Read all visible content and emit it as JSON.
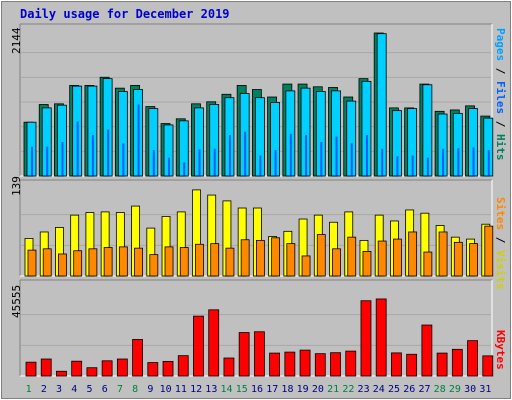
{
  "title": "Daily usage for December 2019",
  "colors": {
    "hits": "#00d0ff",
    "hits_dark": "#008060",
    "files": "#00a0a0",
    "pages": "#0000ff",
    "visits": "#ffff00",
    "sites": "#ff8800",
    "kbytes": "#ff0000",
    "title": "#0000cc",
    "weekend_label": "#008040",
    "weekday_label": "#000080"
  },
  "chart_data": [
    {
      "type": "bar",
      "max_label": "2144",
      "right_labels": [
        {
          "text": "Pages",
          "color": "#00a0ff"
        },
        {
          "text": " / ",
          "color": "#000000"
        },
        {
          "text": "Files",
          "color": "#0060ff"
        },
        {
          "text": " / ",
          "color": "#000000"
        },
        {
          "text": "Hits",
          "color": "#008060"
        }
      ],
      "ylim": [
        0,
        2144
      ],
      "series": [
        {
          "name": "Hits",
          "values": [
            790,
            1050,
            1060,
            1330,
            1330,
            1450,
            1290,
            1330,
            1020,
            770,
            840,
            1060,
            1090,
            1200,
            1330,
            1270,
            1160,
            1350,
            1350,
            1310,
            1300,
            1160,
            1430,
            2100,
            1000,
            1000,
            1350,
            950,
            970,
            1030,
            880
          ]
        },
        {
          "name": "Files",
          "values": [
            790,
            1000,
            1040,
            1320,
            1320,
            1430,
            1240,
            1270,
            990,
            750,
            810,
            1000,
            1050,
            1150,
            1210,
            1150,
            1080,
            1250,
            1290,
            1240,
            1250,
            1100,
            1390,
            2090,
            960,
            990,
            1340,
            910,
            920,
            990,
            850
          ]
        },
        {
          "name": "Pages",
          "values": [
            430,
            430,
            500,
            800,
            600,
            680,
            480,
            1050,
            380,
            270,
            200,
            390,
            400,
            600,
            650,
            300,
            380,
            620,
            600,
            500,
            580,
            480,
            600,
            400,
            290,
            300,
            270,
            400,
            410,
            420,
            380
          ]
        }
      ]
    },
    {
      "type": "bar",
      "max_label": "139",
      "right_labels": [
        {
          "text": "Sites",
          "color": "#ff8800"
        },
        {
          "text": " / ",
          "color": "#000000"
        },
        {
          "text": "Visits",
          "color": "#d0d000"
        }
      ],
      "ylim": [
        0,
        139
      ],
      "series": [
        {
          "name": "Visits",
          "values": [
            58,
            68,
            75,
            94,
            98,
            99,
            98,
            108,
            74,
            92,
            99,
            133,
            125,
            116,
            105,
            105,
            61,
            69,
            88,
            94,
            83,
            99,
            55,
            94,
            85,
            102,
            97,
            78,
            60,
            57,
            80
          ]
        },
        {
          "name": "Sites",
          "values": [
            40,
            42,
            34,
            39,
            42,
            44,
            45,
            43,
            33,
            45,
            44,
            49,
            50,
            43,
            56,
            55,
            59,
            50,
            31,
            64,
            42,
            60,
            38,
            54,
            57,
            68,
            37,
            68,
            52,
            50,
            77
          ]
        }
      ]
    },
    {
      "type": "bar",
      "max_label": "45555",
      "right_labels": [
        {
          "text": "KBytes",
          "color": "#ff0000"
        }
      ],
      "ylim": [
        0,
        45555
      ],
      "series": [
        {
          "name": "KBytes",
          "values": [
            7000,
            8600,
            2400,
            7500,
            4200,
            7700,
            8600,
            18500,
            6800,
            7400,
            10300,
            30300,
            33500,
            9100,
            22000,
            22400,
            11600,
            12100,
            13100,
            11300,
            11800,
            12600,
            38100,
            39000,
            11700,
            11000,
            25800,
            11600,
            13500,
            17900,
            10200
          ]
        }
      ]
    }
  ],
  "days": [
    "1",
    "2",
    "3",
    "4",
    "5",
    "6",
    "7",
    "8",
    "9",
    "10",
    "11",
    "12",
    "13",
    "14",
    "15",
    "16",
    "17",
    "18",
    "19",
    "20",
    "21",
    "22",
    "23",
    "24",
    "25",
    "26",
    "27",
    "28",
    "29",
    "30",
    "31"
  ],
  "weekend_days": [
    1,
    7,
    8,
    14,
    15,
    21,
    22,
    28,
    29
  ]
}
